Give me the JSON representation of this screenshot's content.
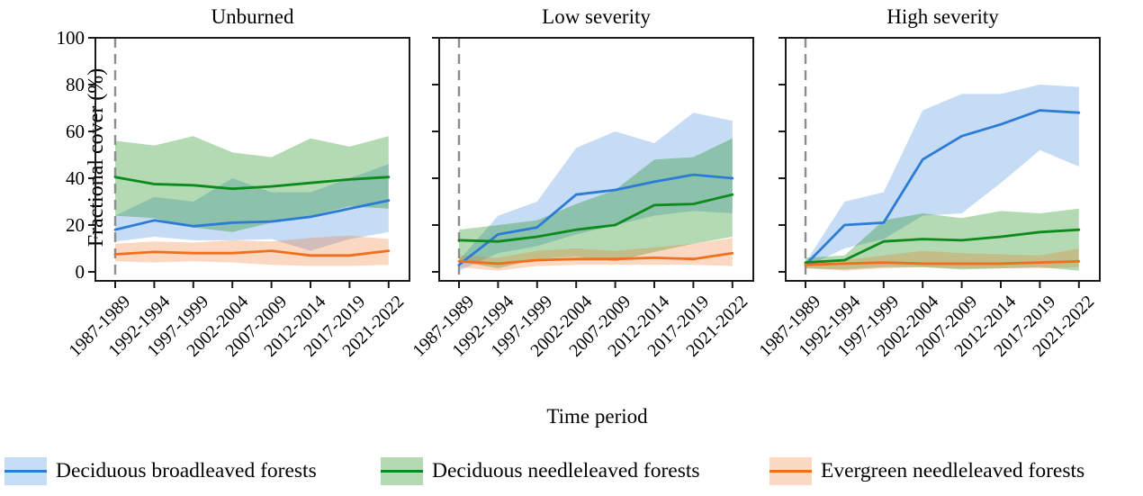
{
  "axes": {
    "y_label": "Fractional cover (%)",
    "x_label": "Time period",
    "y_ticks": [
      0,
      20,
      40,
      60,
      80,
      100
    ],
    "y_range": [
      0,
      100
    ]
  },
  "annotations": {
    "dashed_line_at_category": "1987-1989",
    "dashed_line_color": "#8c8c8c"
  },
  "chart_data": {
    "type": "line",
    "subplot_titles": [
      "Unburned",
      "Low severity",
      "High severity"
    ],
    "categories": [
      "1987-1989",
      "1992-1994",
      "1997-1999",
      "2002-2004",
      "2007-2009",
      "2012-2014",
      "2017-2019",
      "2021-2022"
    ],
    "xlabel": "Time period",
    "ylabel": "Fractional cover (%)",
    "ylim": [
      0,
      100
    ],
    "grid": false,
    "legend_position": "bottom",
    "panels": [
      {
        "title": "Unburned",
        "series": [
          {
            "name": "Deciduous broadleaved forests",
            "values": [
              18,
              22,
              19.5,
              21,
              21.5,
              23.5,
              27,
              30.5
            ],
            "lower": [
              13,
              15,
              13.5,
              13.5,
              14,
              9,
              14,
              17
            ],
            "upper": [
              24,
              32,
              30,
              40,
              34,
              34,
              40,
              46
            ]
          },
          {
            "name": "Deciduous needleleaved forests",
            "values": [
              40.5,
              37.5,
              37,
              35.5,
              36.5,
              38,
              39.5,
              40.5
            ],
            "lower": [
              24,
              23,
              19,
              17,
              21,
              24,
              28,
              27
            ],
            "upper": [
              56,
              54,
              58,
              51,
              49,
              57,
              53.5,
              58
            ]
          },
          {
            "name": "Evergreen needleleaved forests",
            "values": [
              7.5,
              8.5,
              8,
              8,
              9,
              7,
              7,
              9
            ],
            "lower": [
              4.5,
              4,
              4.5,
              4,
              3,
              2.5,
              2.5,
              3
            ],
            "upper": [
              12,
              13,
              12.5,
              13.5,
              13,
              14.5,
              15.5,
              14
            ]
          }
        ]
      },
      {
        "title": "Low severity",
        "series": [
          {
            "name": "Deciduous broadleaved forests",
            "values": [
              3,
              16,
              19,
              33,
              35,
              38.5,
              41.5,
              40
            ],
            "lower": [
              0.5,
              8,
              11,
              16,
              20,
              24,
              26,
              25
            ],
            "upper": [
              5,
              24,
              30,
              53,
              60,
              55,
              68,
              64.5
            ]
          },
          {
            "name": "Deciduous needleleaved forests",
            "values": [
              13.5,
              13,
              15,
              18,
              20,
              28.5,
              29,
              33
            ],
            "lower": [
              4.5,
              1.5,
              5.5,
              6.5,
              4.5,
              8.5,
              12,
              15
            ],
            "upper": [
              18,
              20,
              22,
              29,
              35,
              48,
              49,
              57
            ]
          },
          {
            "name": "Evergreen needleleaved forests",
            "values": [
              4.5,
              3.5,
              5,
              5.5,
              5.5,
              6,
              5.5,
              8
            ],
            "lower": [
              2,
              0.5,
              2.5,
              3,
              3,
              3,
              3,
              2.5
            ],
            "upper": [
              7,
              6,
              9,
              10,
              9,
              10.5,
              12,
              14.5
            ]
          }
        ]
      },
      {
        "title": "High severity",
        "series": [
          {
            "name": "Deciduous broadleaved forests",
            "values": [
              3,
              20,
              21,
              48,
              58,
              63,
              69,
              68
            ],
            "lower": [
              2,
              10,
              14,
              24,
              25,
              38,
              52,
              45
            ],
            "upper": [
              4,
              30,
              34,
              69,
              76,
              76,
              80,
              79
            ]
          },
          {
            "name": "Deciduous needleleaved forests",
            "values": [
              4,
              5,
              13,
              14,
              13.5,
              15,
              17,
              18
            ],
            "lower": [
              1.5,
              1,
              2,
              2,
              1,
              1.5,
              2,
              0.5
            ],
            "upper": [
              6,
              7,
              22,
              25,
              23,
              26,
              25,
              27
            ]
          },
          {
            "name": "Evergreen needleleaved forests",
            "values": [
              3,
              3.5,
              4,
              3.5,
              3.5,
              3.5,
              4,
              4.5
            ],
            "lower": [
              1.5,
              0.5,
              1.5,
              2,
              1.5,
              1.5,
              1.5,
              2
            ],
            "upper": [
              4.5,
              5,
              7,
              9,
              8,
              7.5,
              7,
              10
            ]
          }
        ]
      }
    ]
  },
  "legend": {
    "items": [
      {
        "label": "Deciduous broadleaved forests",
        "line_color": "#2b7bd7",
        "fill_color": "#c6ddf6"
      },
      {
        "label": "Deciduous needleleaved forests",
        "line_color": "#0c8a1c",
        "fill_color": "#b3dab3"
      },
      {
        "label": "Evergreen needleleaved forests",
        "line_color": "#f2701d",
        "fill_color": "#fbdac4"
      }
    ]
  },
  "series_style": {
    "line_colors": [
      "#2b7bd7",
      "#0c8a1c",
      "#f2701d"
    ],
    "band_colors": [
      "rgba(43,123,215,0.27)",
      "rgba(20,140,20,0.32)",
      "rgba(242,112,29,0.27)"
    ]
  }
}
